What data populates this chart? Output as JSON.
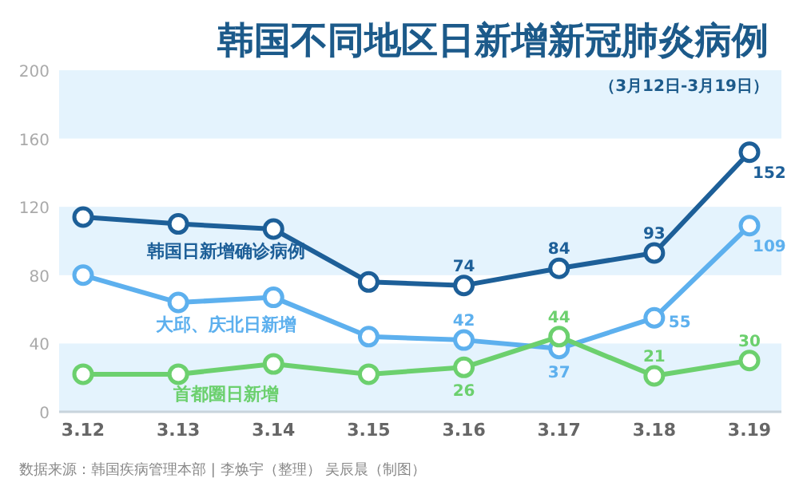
{
  "chart_data": {
    "type": "line",
    "title": "韩国不同地区日新增新冠肺炎病例",
    "subtitle": "（3月12日-3月19日）",
    "categories": [
      "3.12",
      "3.13",
      "3.14",
      "3.15",
      "3.16",
      "3.17",
      "3.18",
      "3.19"
    ],
    "series": [
      {
        "name": "韩国日新增确诊病例",
        "color": "#1d5f98",
        "values": [
          114,
          110,
          107,
          76,
          74,
          84,
          93,
          152
        ],
        "value_labels": [
          null,
          null,
          null,
          null,
          "74",
          "84",
          "93",
          "152"
        ]
      },
      {
        "name": "大邱、庆北日新增",
        "color": "#5db0ee",
        "values": [
          80,
          64,
          67,
          44,
          42,
          37,
          55,
          109
        ],
        "value_labels": [
          null,
          null,
          null,
          null,
          "42",
          "37",
          "55",
          "109"
        ]
      },
      {
        "name": "首都圈日新增",
        "color": "#6cd06e",
        "values": [
          22,
          22,
          28,
          22,
          26,
          44,
          21,
          30
        ],
        "value_labels": [
          null,
          null,
          null,
          null,
          "26",
          "44",
          "21",
          "30"
        ]
      }
    ],
    "ylim": [
      0,
      200
    ],
    "yticks": [
      0,
      40,
      80,
      120,
      160,
      200
    ],
    "grid": false,
    "legend": false,
    "marker": "circle",
    "line_style": "solid",
    "bands": [
      {
        "axis": "y",
        "from": 0,
        "to": 40,
        "color": "#e4f3fd"
      },
      {
        "axis": "y",
        "from": 80,
        "to": 120,
        "color": "#e4f3fd"
      },
      {
        "axis": "y",
        "from": 160,
        "to": 200,
        "color": "#e4f3fd"
      }
    ],
    "annotations": [
      "数据来源：韩国疾病管理本部 | 李焕宇（整理） 吴辰晨（制图）"
    ]
  }
}
